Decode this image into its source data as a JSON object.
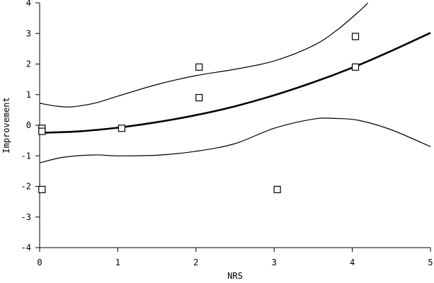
{
  "chart_data": {
    "type": "scatter",
    "title": "",
    "xlabel": "NRS",
    "ylabel": "Improvement",
    "xlim": [
      0,
      5
    ],
    "ylim": [
      -4,
      4
    ],
    "x_ticks": [
      "0",
      "1",
      "2",
      "3",
      "4",
      "5"
    ],
    "y_ticks": [
      "-4",
      "-3",
      "-2",
      "-1",
      "0",
      "1",
      "2",
      "3",
      "4"
    ],
    "grid": false,
    "marker": "open-square",
    "series": [
      {
        "points": [
          {
            "x": 0.03,
            "y": -0.1
          },
          {
            "x": 0.03,
            "y": -0.2
          },
          {
            "x": 0.03,
            "y": -2.1
          },
          {
            "x": 1.05,
            "y": -0.1
          },
          {
            "x": 2.04,
            "y": 1.9
          },
          {
            "x": 2.04,
            "y": 0.9
          },
          {
            "x": 3.04,
            "y": -2.1
          },
          {
            "x": 4.04,
            "y": 2.9
          },
          {
            "x": 4.04,
            "y": 1.9
          }
        ]
      }
    ],
    "fit": [
      {
        "x": 0.0,
        "y": -0.25
      },
      {
        "x": 0.5,
        "y": -0.2
      },
      {
        "x": 1.0,
        "y": -0.08
      },
      {
        "x": 1.5,
        "y": 0.1
      },
      {
        "x": 2.0,
        "y": 0.33
      },
      {
        "x": 2.5,
        "y": 0.62
      },
      {
        "x": 3.0,
        "y": 0.98
      },
      {
        "x": 3.5,
        "y": 1.4
      },
      {
        "x": 4.0,
        "y": 1.88
      },
      {
        "x": 4.5,
        "y": 2.43
      },
      {
        "x": 5.0,
        "y": 3.02
      }
    ],
    "ci_upper": [
      {
        "x": 0.0,
        "y": 0.72
      },
      {
        "x": 0.2,
        "y": 0.63
      },
      {
        "x": 0.4,
        "y": 0.6
      },
      {
        "x": 0.7,
        "y": 0.72
      },
      {
        "x": 1.0,
        "y": 0.95
      },
      {
        "x": 1.5,
        "y": 1.33
      },
      {
        "x": 2.0,
        "y": 1.62
      },
      {
        "x": 2.5,
        "y": 1.83
      },
      {
        "x": 3.0,
        "y": 2.1
      },
      {
        "x": 3.5,
        "y": 2.6
      },
      {
        "x": 3.8,
        "y": 3.1
      },
      {
        "x": 4.1,
        "y": 3.75
      },
      {
        "x": 4.2,
        "y": 4.0
      }
    ],
    "ci_lower": [
      {
        "x": 0.0,
        "y": -1.23
      },
      {
        "x": 0.3,
        "y": -1.05
      },
      {
        "x": 0.7,
        "y": -0.97
      },
      {
        "x": 1.0,
        "y": -1.0
      },
      {
        "x": 1.5,
        "y": -0.98
      },
      {
        "x": 2.0,
        "y": -0.85
      },
      {
        "x": 2.5,
        "y": -0.6
      },
      {
        "x": 3.0,
        "y": -0.1
      },
      {
        "x": 3.5,
        "y": 0.2
      },
      {
        "x": 3.8,
        "y": 0.22
      },
      {
        "x": 4.1,
        "y": 0.15
      },
      {
        "x": 4.5,
        "y": -0.15
      },
      {
        "x": 5.0,
        "y": -0.7
      }
    ]
  }
}
